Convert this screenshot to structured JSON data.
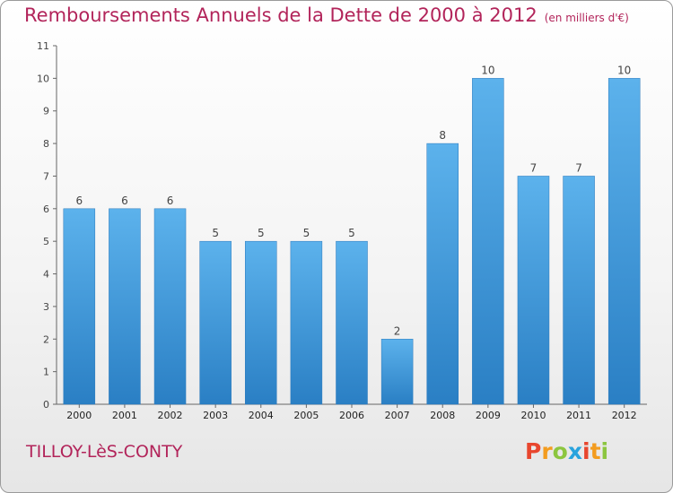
{
  "header": {
    "title": "Remboursements Annuels de la Dette de 2000 à 2012",
    "subtitle": "(en milliers d'€)"
  },
  "footer": {
    "commune": "TILLOY-LèS-CONTY",
    "logo_letters": [
      "P",
      "r",
      "o",
      "x",
      "i",
      "t",
      "i"
    ],
    "logo_colors": [
      "#e8462e",
      "#f39c1f",
      "#8cc63f",
      "#29a3dd",
      "#e8462e",
      "#f39c1f",
      "#8cc63f"
    ]
  },
  "chart_data": {
    "type": "bar",
    "categories": [
      "2000",
      "2001",
      "2002",
      "2003",
      "2004",
      "2005",
      "2006",
      "2007",
      "2008",
      "2009",
      "2010",
      "2011",
      "2012"
    ],
    "values": [
      6,
      6,
      6,
      5,
      5,
      5,
      5,
      2,
      8,
      10,
      7,
      7,
      10
    ],
    "title": "Remboursements Annuels de la Dette de 2000 à 2012",
    "subtitle": "(en milliers d'€)",
    "xlabel": "",
    "ylabel": "",
    "ylim": [
      0,
      11
    ],
    "yticks": [
      0,
      1,
      2,
      3,
      4,
      5,
      6,
      7,
      8,
      9,
      10,
      11
    ],
    "bar_color": "#4da3e0",
    "grid": false
  }
}
